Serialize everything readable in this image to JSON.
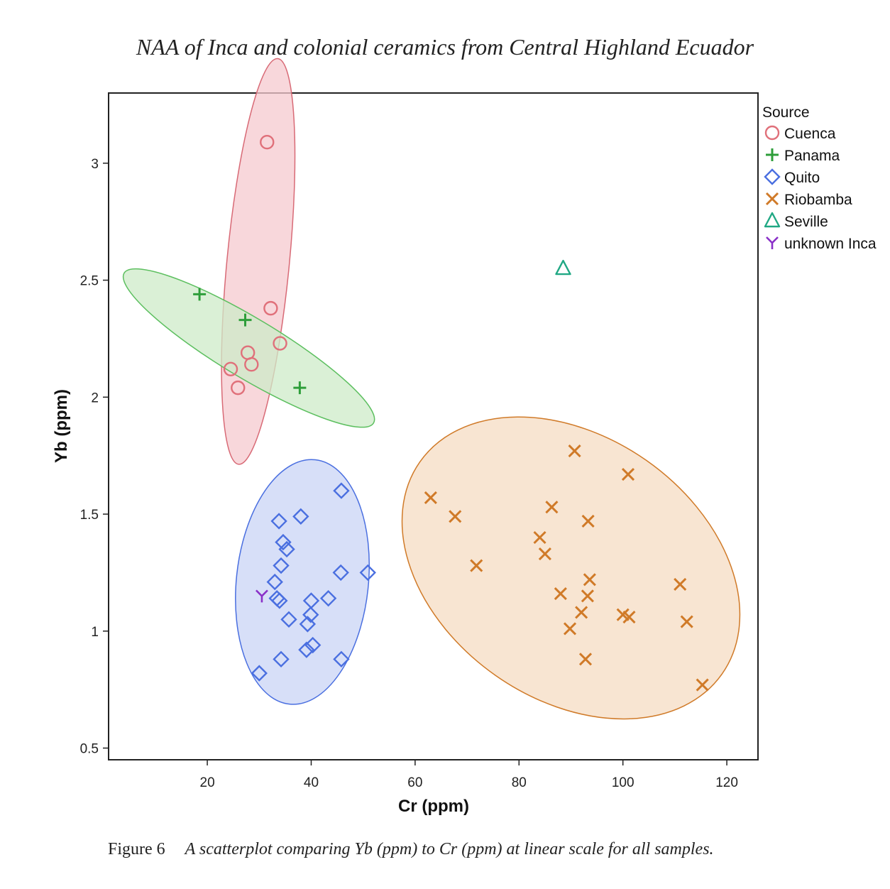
{
  "header": {
    "running_title": "NAA of Inca and colonial ceramics from Central Highland Ecuador"
  },
  "caption": {
    "label": "Figure 6",
    "text": "A scatterplot comparing Yb (ppm) to Cr (ppm) at linear scale for all samples."
  },
  "chart_data": {
    "type": "scatter",
    "xlabel": "Cr (ppm)",
    "ylabel": "Yb (ppm)",
    "xlim": [
      1,
      126
    ],
    "ylim": [
      0.45,
      3.3
    ],
    "xticks": [
      20,
      40,
      60,
      80,
      100,
      120
    ],
    "yticks": [
      0.5,
      1,
      1.5,
      2,
      2.5,
      3
    ],
    "ytick_labels": [
      "0.5",
      "1",
      "1.5",
      "2",
      "2.5",
      "3"
    ],
    "grid": false,
    "legend": {
      "title": "Source",
      "position": "top-right outside"
    },
    "series": [
      {
        "name": "Cuenca",
        "marker": "circle",
        "color": "#e0707a",
        "x": [
          31.5,
          32.2,
          34.0,
          27.8,
          28.5,
          24.5,
          25.9
        ],
        "y": [
          3.09,
          2.38,
          2.23,
          2.19,
          2.14,
          2.12,
          2.04
        ],
        "ellipse": {
          "cx": 29.8,
          "cy": 2.58,
          "fill": "#f6c9cf",
          "stroke": "#d86a76"
        }
      },
      {
        "name": "Panama",
        "marker": "plus",
        "color": "#2e9e3a",
        "x": [
          18.5,
          27.3,
          37.8
        ],
        "y": [
          2.44,
          2.33,
          2.04
        ],
        "ellipse": {
          "cx": 28.0,
          "cy": 2.21,
          "fill": "#cdebc8",
          "stroke": "#5cbf5f"
        }
      },
      {
        "name": "Quito",
        "marker": "diamond",
        "color": "#4a6fe0",
        "x": [
          45.8,
          38.0,
          33.8,
          34.6,
          35.3,
          34.2,
          45.7,
          50.9,
          33.0,
          33.4,
          33.9,
          40.0,
          43.3,
          35.7,
          39.9,
          39.3,
          40.3,
          39.1,
          34.2,
          45.8,
          30.0
        ],
        "y": [
          1.6,
          1.49,
          1.47,
          1.38,
          1.35,
          1.28,
          1.25,
          1.25,
          1.21,
          1.14,
          1.13,
          1.13,
          1.14,
          1.05,
          1.07,
          1.03,
          0.94,
          0.92,
          0.88,
          0.88,
          0.82
        ],
        "ellipse": {
          "cx": 38.3,
          "cy": 1.21,
          "fill": "#c9d4f6",
          "stroke": "#4a6fe0"
        }
      },
      {
        "name": "Riobamba",
        "marker": "x",
        "color": "#d07a28",
        "x": [
          90.7,
          101.0,
          63.0,
          67.7,
          86.3,
          84.0,
          93.3,
          85.0,
          71.8,
          93.6,
          111.0,
          88.0,
          93.2,
          92.0,
          100.0,
          101.2,
          112.3,
          89.8,
          92.8,
          115.3
        ],
        "y": [
          1.77,
          1.67,
          1.57,
          1.49,
          1.53,
          1.4,
          1.47,
          1.33,
          1.28,
          1.22,
          1.2,
          1.16,
          1.15,
          1.08,
          1.07,
          1.06,
          1.04,
          1.01,
          0.88,
          0.77
        ],
        "ellipse": {
          "cx": 90.0,
          "cy": 1.27,
          "fill": "#f6dcc3",
          "stroke": "#d07a28"
        }
      },
      {
        "name": "Seville",
        "marker": "triangle",
        "color": "#20a884",
        "x": [
          88.5
        ],
        "y": [
          2.55
        ]
      },
      {
        "name": "unknown Inca",
        "marker": "y",
        "color": "#8a30c8",
        "x": [
          30.5
        ],
        "y": [
          1.15
        ]
      }
    ]
  }
}
